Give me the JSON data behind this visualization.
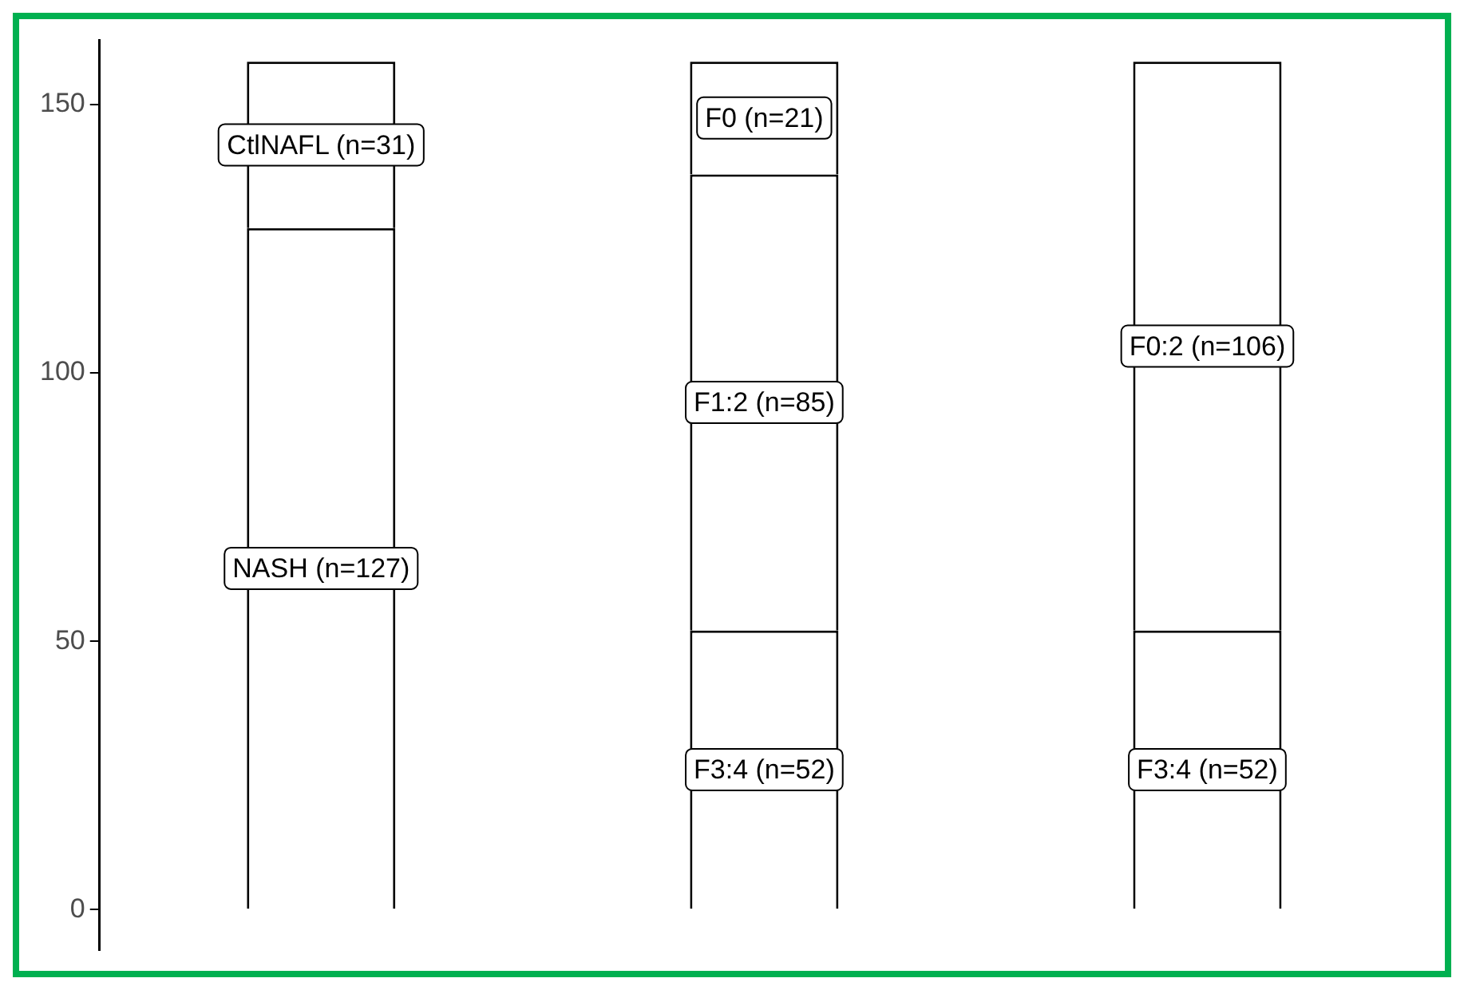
{
  "chart_data": {
    "type": "bar",
    "stacked": true,
    "categories": [
      null,
      null,
      null
    ],
    "series": [
      {
        "color": "#ffffff",
        "values": [
          127,
          52,
          52
        ],
        "value_labels": [
          "NASH (n=127)",
          "F3:4 (n=52)",
          "F3:4 (n=52)"
        ]
      },
      {
        "color": "#ffffff",
        "values": [
          31,
          85,
          106
        ],
        "value_labels": [
          "CtlNAFL (n=31)",
          "F1:2 (n=85)",
          "F0:2 (n=106)"
        ]
      },
      {
        "color": "#ffffff",
        "values": [
          null,
          21,
          null
        ],
        "value_labels": [
          null,
          "F0 (n=21)",
          null
        ]
      }
    ],
    "ylim": [
      -7.5,
      162
    ],
    "yticks": [
      0,
      50,
      100,
      150
    ],
    "grid": false,
    "legend": false
  }
}
